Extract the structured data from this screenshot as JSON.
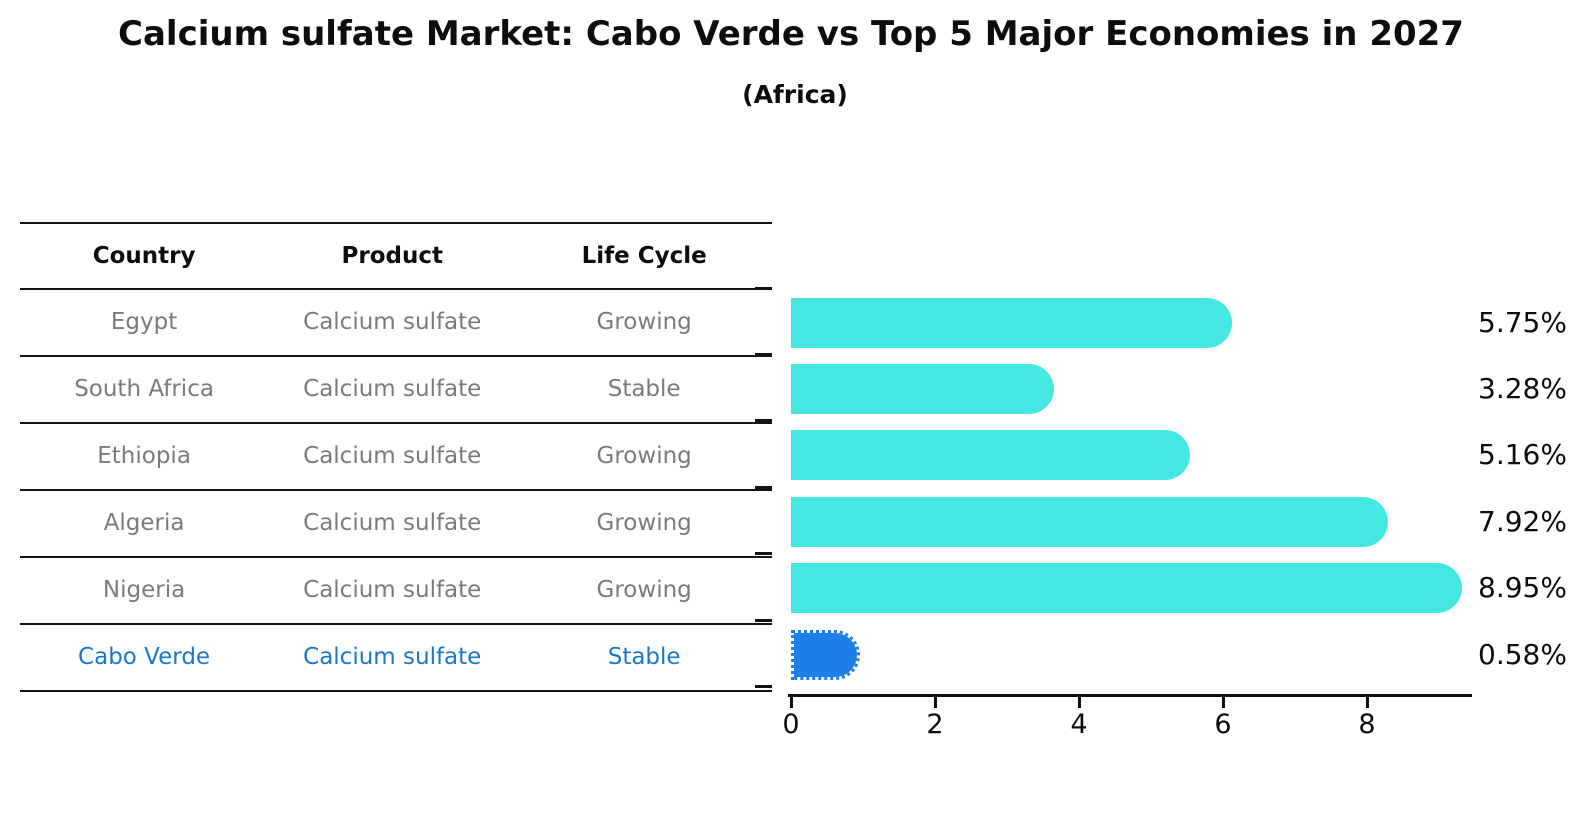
{
  "chart_data": {
    "type": "bar",
    "orientation": "horizontal",
    "title": "Calcium sulfate Market: Cabo Verde vs Top 5 Major Economies in 2027",
    "subtitle": "(Africa)",
    "categories": [
      "Egypt",
      "South Africa",
      "Ethiopia",
      "Algeria",
      "Nigeria",
      "Cabo Verde"
    ],
    "values": [
      5.75,
      3.28,
      5.16,
      7.92,
      8.95,
      0.58
    ],
    "value_labels": [
      "5.75%",
      "3.28%",
      "5.16%",
      "7.92%",
      "8.95%",
      "0.58%"
    ],
    "xlabel": "",
    "ylabel": "",
    "xlim": [
      0,
      9.43
    ],
    "xticks": [
      0,
      2,
      4,
      6,
      8
    ],
    "grid": false,
    "legend": false,
    "bar_color": "#45e8e0",
    "highlight_color": "#1e7fe8",
    "highlight_index": 5,
    "highlight_edge_style": "dotted"
  },
  "table": {
    "headers": [
      "Country",
      "Product",
      "Life Cycle"
    ],
    "rows": [
      {
        "country": "Egypt",
        "product": "Calcium sulfate",
        "life_cycle": "Growing",
        "highlight": false
      },
      {
        "country": "South Africa",
        "product": "Calcium sulfate",
        "life_cycle": "Stable",
        "highlight": false
      },
      {
        "country": "Ethiopia",
        "product": "Calcium sulfate",
        "life_cycle": "Growing",
        "highlight": false
      },
      {
        "country": "Algeria",
        "product": "Calcium sulfate",
        "life_cycle": "Growing",
        "highlight": false
      },
      {
        "country": "Nigeria",
        "product": "Calcium sulfate",
        "life_cycle": "Growing",
        "highlight": false
      },
      {
        "country": "Cabo Verde",
        "product": "Calcium sulfate",
        "life_cycle": "Stable",
        "highlight": true
      }
    ],
    "highlight_text_color": "#1a78c8",
    "row_text_color": "#7b7b7b"
  }
}
